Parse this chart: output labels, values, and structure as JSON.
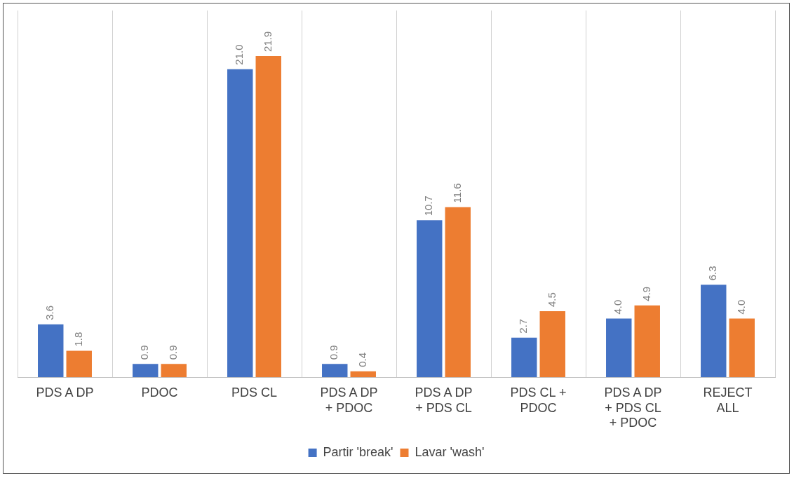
{
  "chart_data": {
    "type": "bar",
    "categories": [
      "PDS A DP",
      "PDOC",
      "PDS CL",
      "PDS A DP + PDOC",
      "PDS A DP + PDS CL",
      "PDS CL + PDOC",
      "PDS A DP + PDS CL + PDOC",
      "REJECT ALL"
    ],
    "series": [
      {
        "name": "Partir 'break'",
        "color": "#4472c4",
        "values": [
          3.6,
          0.9,
          21.0,
          0.9,
          10.7,
          2.7,
          4.0,
          6.3
        ],
        "value_labels": [
          "3.6",
          "0.9",
          "21.0",
          "0.9",
          "10.7",
          "2.7",
          "4.0",
          "6.3"
        ]
      },
      {
        "name": "Lavar 'wash'",
        "color": "#ed7d31",
        "values": [
          1.8,
          0.9,
          21.9,
          0.4,
          11.6,
          4.5,
          4.9,
          4.0
        ],
        "value_labels": [
          "1.8",
          "0.9",
          "21.9",
          "0.4",
          "11.6",
          "4.5",
          "4.9",
          "4.0"
        ]
      }
    ],
    "grid": "x",
    "legend": "bottom"
  }
}
